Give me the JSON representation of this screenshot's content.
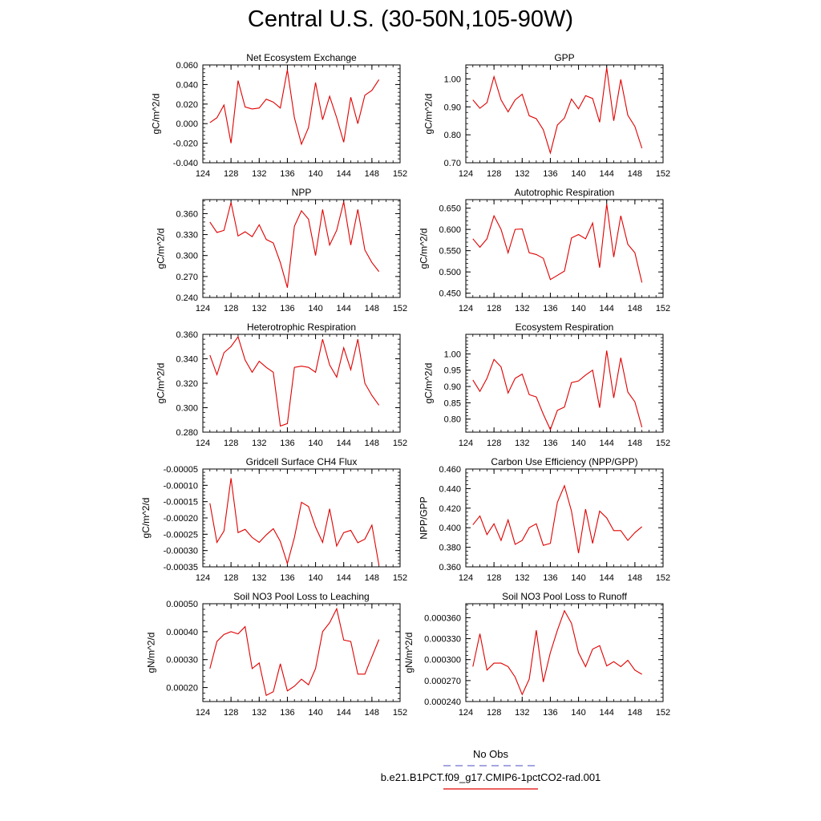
{
  "title": "Central U.S. (30-50N,105-90W)",
  "legend": {
    "obs_label": "No Obs",
    "run_label": "b.e21.B1PCT.f09_g17.CMIP6-1pctCO2-rad.001",
    "obs_color": "#6f6fd0",
    "run_color": "#e00000"
  },
  "chart_data": [
    {
      "type": "line",
      "title": "Net Ecosystem Exchange",
      "ylabel": "gC/m^2/d",
      "xlim": [
        124,
        152
      ],
      "xticks": [
        124,
        128,
        132,
        136,
        140,
        144,
        148,
        152
      ],
      "xtick_labels": [
        "124",
        "128",
        "132",
        "136",
        "140",
        "144",
        "148",
        "152"
      ],
      "ylim": [
        -0.04,
        0.06
      ],
      "yticks": [
        -0.04,
        -0.02,
        0,
        0.02,
        0.04,
        0.06
      ],
      "ytick_labels": [
        "-0.040",
        "-0.020",
        "0.000",
        "0.020",
        "0.040",
        "0.060"
      ],
      "x": [
        125,
        126,
        127,
        128,
        129,
        130,
        131,
        132,
        133,
        134,
        135,
        136,
        137,
        138,
        139,
        140,
        141,
        142,
        143,
        144,
        145,
        146,
        147,
        148,
        149
      ],
      "series": [
        {
          "color": "#e00000",
          "values": [
            0.001,
            0.006,
            0.019,
            -0.02,
            0.044,
            0.017,
            0.015,
            0.016,
            0.025,
            0.022,
            0.016,
            0.055,
            0.006,
            -0.021,
            -0.004,
            0.042,
            0.004,
            0.028,
            0.006,
            -0.019,
            0.027,
            0.0,
            0.029,
            0.034,
            0.045
          ]
        }
      ]
    },
    {
      "type": "line",
      "title": "GPP",
      "ylabel": "gC/m^2/d",
      "xlim": [
        124,
        152
      ],
      "xticks": [
        124,
        128,
        132,
        136,
        140,
        144,
        148,
        152
      ],
      "xtick_labels": [
        "124",
        "128",
        "132",
        "136",
        "140",
        "144",
        "148",
        "152"
      ],
      "ylim": [
        0.7,
        1.05
      ],
      "yticks": [
        0.7,
        0.8,
        0.9,
        1.0
      ],
      "ytick_labels": [
        "0.70",
        "0.80",
        "0.90",
        "1.00"
      ],
      "x": [
        125,
        126,
        127,
        128,
        129,
        130,
        131,
        132,
        133,
        134,
        135,
        136,
        137,
        138,
        139,
        140,
        141,
        142,
        143,
        144,
        145,
        146,
        147,
        148,
        149
      ],
      "series": [
        {
          "color": "#e00000",
          "values": [
            0.925,
            0.895,
            0.915,
            1.008,
            0.925,
            0.882,
            0.925,
            0.945,
            0.868,
            0.858,
            0.818,
            0.735,
            0.835,
            0.86,
            0.928,
            0.893,
            0.94,
            0.93,
            0.845,
            1.04,
            0.85,
            0.998,
            0.87,
            0.83,
            0.752
          ]
        }
      ]
    },
    {
      "type": "line",
      "title": "NPP",
      "ylabel": "gC/m^2/d",
      "xlim": [
        124,
        152
      ],
      "xticks": [
        124,
        128,
        132,
        136,
        140,
        144,
        148,
        152
      ],
      "xtick_labels": [
        "124",
        "128",
        "132",
        "136",
        "140",
        "144",
        "148",
        "152"
      ],
      "ylim": [
        0.24,
        0.38
      ],
      "yticks": [
        0.24,
        0.27,
        0.3,
        0.33,
        0.36
      ],
      "ytick_labels": [
        "0.240",
        "0.270",
        "0.300",
        "0.330",
        "0.360"
      ],
      "x": [
        125,
        126,
        127,
        128,
        129,
        130,
        131,
        132,
        133,
        134,
        135,
        136,
        137,
        138,
        139,
        140,
        141,
        142,
        143,
        144,
        145,
        146,
        147,
        148,
        149
      ],
      "series": [
        {
          "color": "#e00000",
          "values": [
            0.348,
            0.333,
            0.336,
            0.376,
            0.328,
            0.334,
            0.327,
            0.344,
            0.323,
            0.318,
            0.29,
            0.254,
            0.342,
            0.364,
            0.352,
            0.3,
            0.366,
            0.315,
            0.336,
            0.377,
            0.315,
            0.366,
            0.308,
            0.29,
            0.277
          ]
        }
      ]
    },
    {
      "type": "line",
      "title": "Autotrophic Respiration",
      "ylabel": "gC/m^2/d",
      "xlim": [
        124,
        152
      ],
      "xticks": [
        124,
        128,
        132,
        136,
        140,
        144,
        148,
        152
      ],
      "xtick_labels": [
        "124",
        "128",
        "132",
        "136",
        "140",
        "144",
        "148",
        "152"
      ],
      "ylim": [
        0.44,
        0.67
      ],
      "yticks": [
        0.45,
        0.5,
        0.55,
        0.6,
        0.65
      ],
      "ytick_labels": [
        "0.450",
        "0.500",
        "0.550",
        "0.600",
        "0.650"
      ],
      "x": [
        125,
        126,
        127,
        128,
        129,
        130,
        131,
        132,
        133,
        134,
        135,
        136,
        137,
        138,
        139,
        140,
        141,
        142,
        143,
        144,
        145,
        146,
        147,
        148,
        149
      ],
      "series": [
        {
          "color": "#e00000",
          "values": [
            0.578,
            0.558,
            0.578,
            0.632,
            0.6,
            0.545,
            0.6,
            0.601,
            0.545,
            0.541,
            0.532,
            0.482,
            0.492,
            0.502,
            0.58,
            0.588,
            0.578,
            0.615,
            0.51,
            0.66,
            0.535,
            0.632,
            0.565,
            0.545,
            0.475
          ]
        }
      ]
    },
    {
      "type": "line",
      "title": "Heterotrophic Respiration",
      "ylabel": "gC/m^2/d",
      "xlim": [
        124,
        152
      ],
      "xticks": [
        124,
        128,
        132,
        136,
        140,
        144,
        148,
        152
      ],
      "xtick_labels": [
        "124",
        "128",
        "132",
        "136",
        "140",
        "144",
        "148",
        "152"
      ],
      "ylim": [
        0.28,
        0.36
      ],
      "yticks": [
        0.28,
        0.3,
        0.32,
        0.34,
        0.36
      ],
      "ytick_labels": [
        "0.280",
        "0.300",
        "0.320",
        "0.340",
        "0.360"
      ],
      "x": [
        125,
        126,
        127,
        128,
        129,
        130,
        131,
        132,
        133,
        134,
        135,
        136,
        137,
        138,
        139,
        140,
        141,
        142,
        143,
        144,
        145,
        146,
        147,
        148,
        149
      ],
      "series": [
        {
          "color": "#e00000",
          "values": [
            0.343,
            0.327,
            0.345,
            0.35,
            0.358,
            0.339,
            0.329,
            0.338,
            0.333,
            0.329,
            0.285,
            0.287,
            0.333,
            0.334,
            0.333,
            0.329,
            0.356,
            0.335,
            0.325,
            0.349,
            0.331,
            0.356,
            0.32,
            0.31,
            0.302
          ]
        }
      ]
    },
    {
      "type": "line",
      "title": "Ecosystem Respiration",
      "ylabel": "gC/m^2/d",
      "xlim": [
        124,
        152
      ],
      "xticks": [
        124,
        128,
        132,
        136,
        140,
        144,
        148,
        152
      ],
      "xtick_labels": [
        "124",
        "128",
        "132",
        "136",
        "140",
        "144",
        "148",
        "152"
      ],
      "ylim": [
        0.76,
        1.06
      ],
      "yticks": [
        0.8,
        0.85,
        0.9,
        0.95,
        1.0
      ],
      "ytick_labels": [
        "0.80",
        "0.85",
        "0.90",
        "0.95",
        "1.00"
      ],
      "x": [
        125,
        126,
        127,
        128,
        129,
        130,
        131,
        132,
        133,
        134,
        135,
        136,
        137,
        138,
        139,
        140,
        141,
        142,
        143,
        144,
        145,
        146,
        147,
        148,
        149
      ],
      "series": [
        {
          "color": "#e00000",
          "values": [
            0.92,
            0.885,
            0.925,
            0.983,
            0.96,
            0.88,
            0.925,
            0.938,
            0.875,
            0.868,
            0.815,
            0.768,
            0.827,
            0.837,
            0.912,
            0.917,
            0.935,
            0.95,
            0.835,
            1.01,
            0.865,
            0.988,
            0.883,
            0.853,
            0.775
          ]
        }
      ]
    },
    {
      "type": "line",
      "title": "Gridcell Surface CH4 Flux",
      "ylabel": "gC/m^2/d",
      "xlim": [
        124,
        152
      ],
      "xticks": [
        124,
        128,
        132,
        136,
        140,
        144,
        148,
        152
      ],
      "xtick_labels": [
        "124",
        "128",
        "132",
        "136",
        "140",
        "144",
        "148",
        "152"
      ],
      "ylim": [
        -0.00035,
        -5e-05
      ],
      "yticks": [
        -0.00035,
        -0.0003,
        -0.00025,
        -0.0002,
        -0.00015,
        -0.0001,
        -5e-05
      ],
      "ytick_labels": [
        "-0.00035",
        "-0.00030",
        "-0.00025",
        "-0.00020",
        "-0.00015",
        "-0.00010",
        "-0.00005"
      ],
      "x": [
        125,
        126,
        127,
        128,
        129,
        130,
        131,
        132,
        133,
        134,
        135,
        136,
        137,
        138,
        139,
        140,
        141,
        142,
        143,
        144,
        145,
        146,
        147,
        148,
        149
      ],
      "series": [
        {
          "color": "#e00000",
          "values": [
            -0.000155,
            -0.000275,
            -0.00024,
            -7.8e-05,
            -0.000245,
            -0.000235,
            -0.00026,
            -0.000275,
            -0.000252,
            -0.000233,
            -0.000272,
            -0.00034,
            -0.00026,
            -0.000152,
            -0.000165,
            -0.000228,
            -0.000275,
            -0.000172,
            -0.000286,
            -0.000245,
            -0.000238,
            -0.000276,
            -0.000265,
            -0.000222,
            -0.000345
          ]
        }
      ]
    },
    {
      "type": "line",
      "title": "Carbon Use Efficiency (NPP/GPP)",
      "ylabel": "NPP/GPP",
      "xlim": [
        124,
        152
      ],
      "xticks": [
        124,
        128,
        132,
        136,
        140,
        144,
        148,
        152
      ],
      "xtick_labels": [
        "124",
        "128",
        "132",
        "136",
        "140",
        "144",
        "148",
        "152"
      ],
      "ylim": [
        0.36,
        0.46
      ],
      "yticks": [
        0.36,
        0.38,
        0.4,
        0.42,
        0.44,
        0.46
      ],
      "ytick_labels": [
        "0.360",
        "0.380",
        "0.400",
        "0.420",
        "0.440",
        "0.460"
      ],
      "x": [
        125,
        126,
        127,
        128,
        129,
        130,
        131,
        132,
        133,
        134,
        135,
        136,
        137,
        138,
        139,
        140,
        141,
        142,
        143,
        144,
        145,
        146,
        147,
        148,
        149
      ],
      "series": [
        {
          "color": "#e00000",
          "values": [
            0.403,
            0.412,
            0.393,
            0.404,
            0.387,
            0.408,
            0.383,
            0.387,
            0.4,
            0.404,
            0.382,
            0.384,
            0.426,
            0.443,
            0.417,
            0.374,
            0.419,
            0.384,
            0.417,
            0.41,
            0.397,
            0.397,
            0.387,
            0.395,
            0.401
          ]
        }
      ]
    },
    {
      "type": "line",
      "title": "Soil NO3 Pool Loss to Leaching",
      "ylabel": "gN/m^2/d",
      "xlim": [
        124,
        152
      ],
      "xticks": [
        124,
        128,
        132,
        136,
        140,
        144,
        148,
        152
      ],
      "xtick_labels": [
        "124",
        "128",
        "132",
        "136",
        "140",
        "144",
        "148",
        "152"
      ],
      "ylim": [
        0.00015,
        0.0005
      ],
      "yticks": [
        0.0002,
        0.0003,
        0.0004,
        0.0005
      ],
      "ytick_labels": [
        "0.00020",
        "0.00030",
        "0.00040",
        "0.00050"
      ],
      "x": [
        125,
        126,
        127,
        128,
        129,
        130,
        131,
        132,
        133,
        134,
        135,
        136,
        137,
        138,
        139,
        140,
        141,
        142,
        143,
        144,
        145,
        146,
        147,
        148,
        149
      ],
      "series": [
        {
          "color": "#e00000",
          "values": [
            0.000268,
            0.000365,
            0.00039,
            0.0004,
            0.000392,
            0.000418,
            0.000268,
            0.000288,
            0.000172,
            0.000185,
            0.000285,
            0.000188,
            0.000205,
            0.00023,
            0.00021,
            0.000268,
            0.0004,
            0.000432,
            0.000482,
            0.00037,
            0.000365,
            0.000248,
            0.000248,
            0.00031,
            0.000372
          ]
        }
      ]
    },
    {
      "type": "line",
      "title": "Soil NO3 Pool Loss to Runoff",
      "ylabel": "gN/m^2/d",
      "xlim": [
        124,
        152
      ],
      "xticks": [
        124,
        128,
        132,
        136,
        140,
        144,
        148,
        152
      ],
      "xtick_labels": [
        "124",
        "128",
        "132",
        "136",
        "140",
        "144",
        "148",
        "152"
      ],
      "ylim": [
        0.00024,
        0.00038
      ],
      "yticks": [
        0.00024,
        0.00027,
        0.0003,
        0.00033,
        0.00036
      ],
      "ytick_labels": [
        "0.000240",
        "0.000270",
        "0.000300",
        "0.000330",
        "0.000360"
      ],
      "x": [
        125,
        126,
        127,
        128,
        129,
        130,
        131,
        132,
        133,
        134,
        135,
        136,
        137,
        138,
        139,
        140,
        141,
        142,
        143,
        144,
        145,
        146,
        147,
        148,
        149
      ],
      "series": [
        {
          "color": "#e00000",
          "values": [
            0.00029,
            0.000337,
            0.000285,
            0.000295,
            0.000295,
            0.00029,
            0.000275,
            0.00025,
            0.000272,
            0.000342,
            0.000268,
            0.00031,
            0.000342,
            0.00037,
            0.000352,
            0.00031,
            0.00029,
            0.000315,
            0.00032,
            0.000291,
            0.000297,
            0.00029,
            0.000299,
            0.000285,
            0.000279
          ]
        }
      ]
    }
  ]
}
